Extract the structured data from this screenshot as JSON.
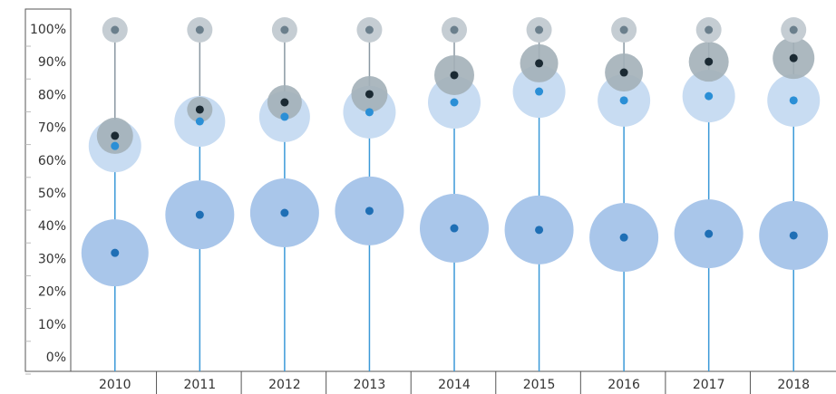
{
  "chart_data": {
    "type": "bubble",
    "categories": [
      "2010",
      "2011",
      "2012",
      "2013",
      "2014",
      "2015",
      "2016",
      "2017",
      "2018"
    ],
    "series": [
      {
        "color": "#a9c6ea",
        "dot_color": "#1f6fb5",
        "values": [
          32.0,
          43.6,
          44.2,
          44.8,
          39.5,
          39.0,
          36.7,
          37.8,
          37.3
        ],
        "sizes": [
          37,
          38,
          38,
          38,
          38,
          38,
          38,
          38,
          38
        ]
      },
      {
        "color": "#c8dcf2",
        "dot_color": "#2b8fd6",
        "values": [
          64.6,
          72.1,
          73.5,
          74.9,
          77.9,
          81.2,
          78.5,
          79.8,
          78.5
        ],
        "sizes": [
          29,
          28,
          28,
          29,
          29,
          29,
          29,
          29,
          29
        ]
      },
      {
        "color": "#a3b0b8",
        "dot_color": "#1b2a33",
        "values": [
          67.7,
          75.7,
          77.9,
          80.4,
          86.2,
          89.8,
          87.0,
          90.3,
          91.4
        ],
        "sizes": [
          20,
          14,
          19,
          20,
          22,
          21,
          21,
          22,
          23
        ]
      },
      {
        "color": "#c5cdd3",
        "dot_color": "#6b7f8c",
        "values": [
          100,
          100,
          100,
          100,
          100,
          100,
          100,
          100,
          100
        ],
        "sizes": [
          14,
          14,
          14,
          14,
          14,
          14,
          14,
          14,
          14
        ]
      }
    ],
    "ylim": [
      0,
      106
    ],
    "yticks": [
      {
        "value": 0,
        "label": "0%"
      },
      {
        "value": 10,
        "label": "10%"
      },
      {
        "value": 20,
        "label": "20%"
      },
      {
        "value": 30,
        "label": "30%"
      },
      {
        "value": 40,
        "label": "40%"
      },
      {
        "value": 50,
        "label": "50%"
      },
      {
        "value": 60,
        "label": "60%"
      },
      {
        "value": 70,
        "label": "70%"
      },
      {
        "value": 80,
        "label": "80%"
      },
      {
        "value": 90,
        "label": "90%"
      },
      {
        "value": 100,
        "label": "100%"
      }
    ]
  }
}
